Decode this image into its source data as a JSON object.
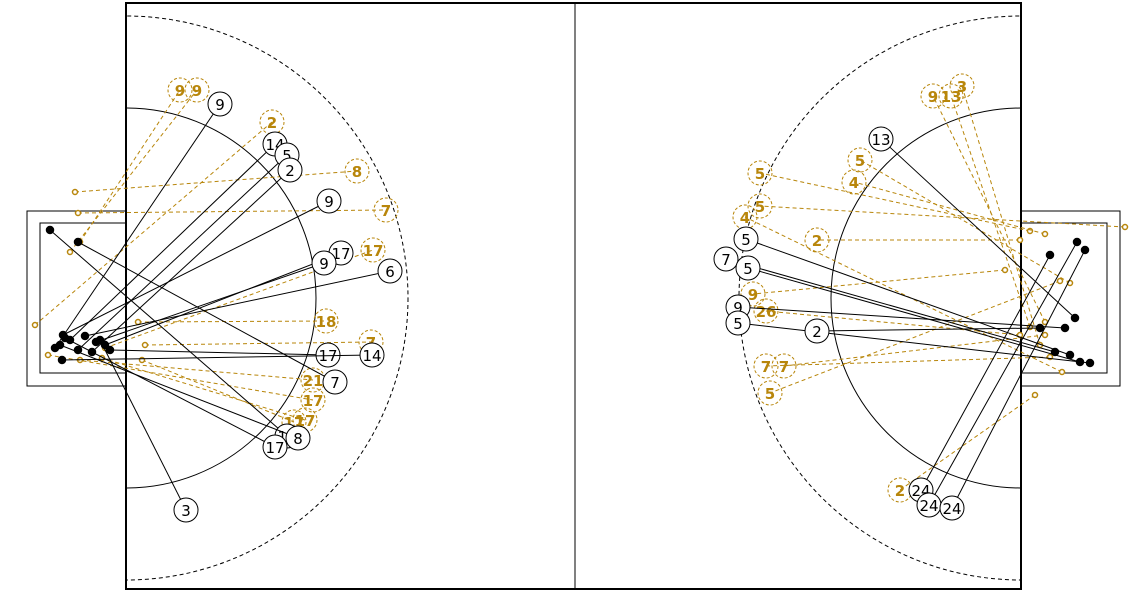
{
  "colors": {
    "made": "#000000",
    "missed": "#b8860b",
    "field": "#000000",
    "background": "#ffffff"
  },
  "left_half": {
    "made_labels": [
      "9",
      "14",
      "5",
      "2",
      "9",
      "17",
      "9",
      "6",
      "17",
      "14",
      "7",
      "17",
      "8",
      "17",
      "3"
    ],
    "missed_labels": [
      "9",
      "9",
      "2",
      "8",
      "7",
      "17",
      "18",
      "7",
      "21",
      "17",
      "17",
      "17"
    ]
  },
  "right_half": {
    "made_labels": [
      "13",
      "5",
      "7",
      "5",
      "9",
      "5",
      "2",
      "24",
      "24",
      "24"
    ],
    "missed_labels": [
      "9",
      "13",
      "3",
      "5",
      "5",
      "4",
      "5",
      "4",
      "2",
      "9",
      "26",
      "7",
      "7",
      "5",
      "2"
    ]
  }
}
